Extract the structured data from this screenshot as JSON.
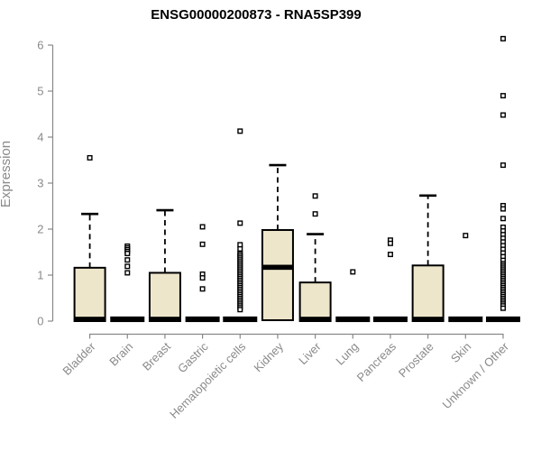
{
  "chart_data": {
    "type": "boxplot",
    "title": "ENSG00000200873 - RNA5SP399",
    "ylabel": "Expression",
    "xlabel": "",
    "ylim": [
      0,
      6
    ],
    "yticks": [
      0,
      1,
      2,
      3,
      4,
      5,
      6
    ],
    "grid": false,
    "legend": false,
    "colors": {
      "box_fill": "#EDE6CB",
      "box_stroke": "#000000",
      "median": "#000000",
      "whisker": "#000000",
      "outlier_stroke": "#000000",
      "outlier_fill": "#ffffff",
      "axis": "#888888",
      "axis_text": "#8a8a8a",
      "title_text": "#000000"
    },
    "categories": [
      "Bladder",
      "Brain",
      "Breast",
      "Gastric",
      "Hematopoietic cells",
      "Kidney",
      "Liver",
      "Lung",
      "Pancreas",
      "Prostate",
      "Skin",
      "Unknown / Other"
    ],
    "boxes": [
      {
        "category": "Bladder",
        "flat": false,
        "q1": 0,
        "median": 0.04,
        "q3": 1.16,
        "whisker_low": 0,
        "whisker_high": 2.33,
        "outliers": [
          3.55
        ]
      },
      {
        "category": "Brain",
        "flat": true,
        "q1": 0,
        "median": 0.04,
        "q3": 0.05,
        "whisker_low": 0,
        "whisker_high": 0.05,
        "outliers": [
          1.63,
          1.59,
          1.55,
          1.51,
          1.47,
          1.33,
          1.19,
          1.05
        ]
      },
      {
        "category": "Breast",
        "flat": false,
        "q1": 0,
        "median": 0.04,
        "q3": 1.05,
        "whisker_low": 0,
        "whisker_high": 2.41,
        "outliers": []
      },
      {
        "category": "Gastric",
        "flat": true,
        "q1": 0,
        "median": 0.04,
        "q3": 0.05,
        "whisker_low": 0,
        "whisker_high": 0.05,
        "outliers": [
          2.05,
          1.67,
          1.02,
          0.94,
          0.7
        ]
      },
      {
        "category": "Hematopoietic cells",
        "flat": true,
        "q1": 0,
        "median": 0.04,
        "q3": 0.05,
        "whisker_low": 0,
        "whisker_high": 0.05,
        "outliers": [
          4.13,
          2.13,
          1.66,
          1.57,
          1.48,
          1.45,
          1.41,
          1.37,
          1.33,
          1.29,
          1.25,
          1.21,
          1.17,
          1.13,
          1.09,
          1.05,
          1.01,
          0.97,
          0.93,
          0.89,
          0.85,
          0.81,
          0.77,
          0.73,
          0.69,
          0.65,
          0.61,
          0.57,
          0.53,
          0.49,
          0.45,
          0.41,
          0.37,
          0.33,
          0.29,
          0.25
        ]
      },
      {
        "category": "Kidney",
        "flat": false,
        "q1": 0.02,
        "median": 1.17,
        "q3": 1.98,
        "whisker_low": 0.02,
        "whisker_high": 3.39,
        "outliers": []
      },
      {
        "category": "Liver",
        "flat": false,
        "q1": 0,
        "median": 0.04,
        "q3": 0.84,
        "whisker_low": 0,
        "whisker_high": 1.89,
        "outliers": [
          2.72,
          2.33
        ]
      },
      {
        "category": "Lung",
        "flat": true,
        "q1": 0,
        "median": 0.04,
        "q3": 0.05,
        "whisker_low": 0,
        "whisker_high": 0.05,
        "outliers": [
          1.07
        ]
      },
      {
        "category": "Pancreas",
        "flat": true,
        "q1": 0,
        "median": 0.04,
        "q3": 0.05,
        "whisker_low": 0,
        "whisker_high": 0.05,
        "outliers": [
          1.76,
          1.69,
          1.45
        ]
      },
      {
        "category": "Prostate",
        "flat": false,
        "q1": 0,
        "median": 0.04,
        "q3": 1.21,
        "whisker_low": 0,
        "whisker_high": 2.73,
        "outliers": []
      },
      {
        "category": "Skin",
        "flat": true,
        "q1": 0,
        "median": 0.04,
        "q3": 0.05,
        "whisker_low": 0,
        "whisker_high": 0.05,
        "outliers": [
          1.86
        ]
      },
      {
        "category": "Unknown / Other",
        "flat": true,
        "q1": 0,
        "median": 0.04,
        "q3": 0.05,
        "whisker_low": 0,
        "whisker_high": 0.05,
        "outliers": [
          6.14,
          4.9,
          4.48,
          3.39,
          2.51,
          2.44,
          2.23,
          2.04,
          1.96,
          1.88,
          1.8,
          1.72,
          1.64,
          1.56,
          1.48,
          1.4,
          1.32,
          1.25,
          1.21,
          1.17,
          1.13,
          1.09,
          1.05,
          1.01,
          0.97,
          0.93,
          0.89,
          0.85,
          0.81,
          0.77,
          0.73,
          0.69,
          0.65,
          0.61,
          0.57,
          0.53,
          0.49,
          0.45,
          0.41,
          0.37,
          0.33,
          0.28
        ]
      }
    ]
  }
}
